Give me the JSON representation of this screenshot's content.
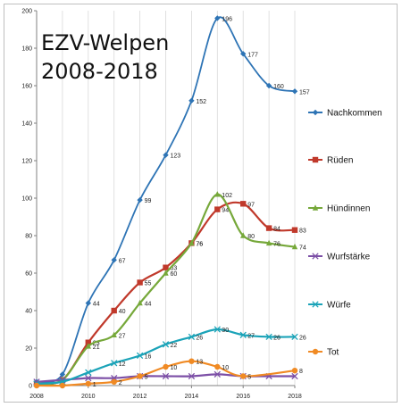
{
  "chart_data": {
    "type": "line",
    "title_lines": [
      "EZV-Welpen",
      "2008-2018"
    ],
    "xlabel": "",
    "ylabel": "",
    "x": [
      2008,
      2009,
      2010,
      2011,
      2012,
      2013,
      2014,
      2015,
      2016,
      2017,
      2018
    ],
    "xticks": [
      2008,
      2010,
      2012,
      2014,
      2016,
      2018
    ],
    "ylim": [
      0,
      200
    ],
    "yticks": [
      0,
      20,
      40,
      60,
      80,
      100,
      120,
      140,
      160,
      180,
      200
    ],
    "grid": "vertical",
    "legend_position": "right",
    "series": [
      {
        "name": "Nachkommen",
        "color": "#2e74b5",
        "marker": "diamond",
        "values": [
          2,
          6,
          44,
          67,
          99,
          123,
          152,
          196,
          177,
          160,
          157
        ],
        "labels": [
          null,
          null,
          44,
          67,
          99,
          123,
          152,
          196,
          177,
          160,
          157
        ]
      },
      {
        "name": "Rüden",
        "color": "#c0392b",
        "marker": "square",
        "values": [
          1,
          3,
          23,
          40,
          55,
          63,
          76,
          94,
          97,
          84,
          83
        ],
        "labels": [
          null,
          null,
          23,
          40,
          55,
          63,
          76,
          94,
          97,
          84,
          83
        ]
      },
      {
        "name": "Hündinnen",
        "color": "#76a83a",
        "marker": "triangle",
        "values": [
          1,
          3,
          21,
          27,
          44,
          60,
          76,
          102,
          80,
          76,
          74
        ],
        "labels": [
          null,
          null,
          21,
          27,
          44,
          60,
          76,
          102,
          80,
          76,
          74
        ]
      },
      {
        "name": "Wurfstärke",
        "color": "#7c4fa6",
        "marker": "x",
        "values": [
          2,
          3,
          4,
          4,
          5,
          5,
          5,
          6,
          5,
          5,
          5
        ],
        "labels": [
          null,
          null,
          null,
          null,
          null,
          null,
          null,
          null,
          null,
          null,
          null
        ]
      },
      {
        "name": "Würfe",
        "color": "#1ba3b8",
        "marker": "x",
        "values": [
          1,
          2,
          7,
          12,
          16,
          22,
          26,
          30,
          27,
          26,
          26
        ],
        "labels": [
          null,
          null,
          null,
          12,
          16,
          22,
          26,
          30,
          27,
          26,
          26
        ]
      },
      {
        "name": "Tot",
        "color": "#f08a24",
        "marker": "circle",
        "values": [
          0,
          0,
          1,
          2,
          5,
          10,
          13,
          10,
          5,
          null,
          8
        ],
        "labels": [
          null,
          null,
          1,
          2,
          5,
          10,
          13,
          10,
          5,
          null,
          8
        ]
      }
    ]
  }
}
